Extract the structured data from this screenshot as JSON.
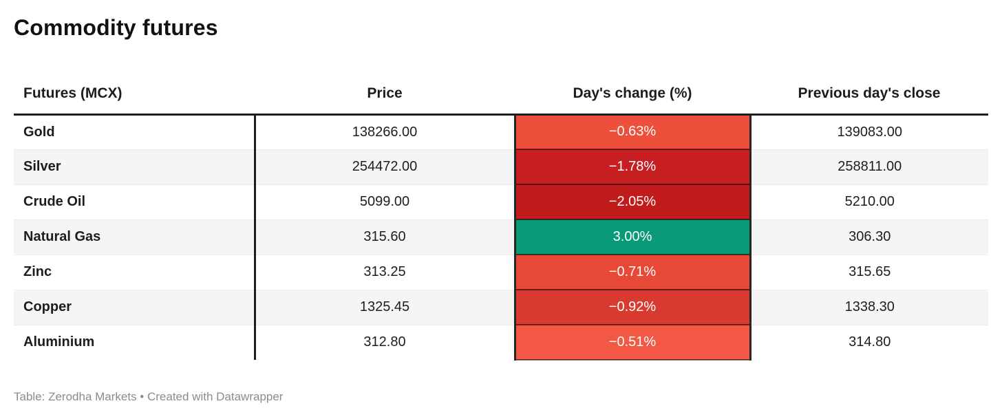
{
  "title": "Commodity futures",
  "footer": "Table: Zerodha Markets • Created with Datawrapper",
  "colors": {
    "negative_strong": "#c21b1c",
    "negative_mild": "#f25843",
    "positive": "#0a9a78",
    "header_rule": "#1d1d1d",
    "zebra_row": "#f5f5f5",
    "footer_text": "#8b8b8b"
  },
  "chart_data": {
    "type": "table",
    "title": "Commodity futures",
    "columns": [
      "Futures (MCX)",
      "Price",
      "Day's change (%)",
      "Previous day's close"
    ],
    "rows": [
      {
        "name": "Gold",
        "price": "138266.00",
        "change": "−0.63%",
        "change_value": -0.63,
        "change_color": "#ee4f3b",
        "prev_close": "139083.00"
      },
      {
        "name": "Silver",
        "price": "254472.00",
        "change": "−1.78%",
        "change_value": -1.78,
        "change_color": "#c71f21",
        "prev_close": "258811.00"
      },
      {
        "name": "Crude Oil",
        "price": "5099.00",
        "change": "−2.05%",
        "change_value": -2.05,
        "change_color": "#c21b1c",
        "prev_close": "5210.00"
      },
      {
        "name": "Natural Gas",
        "price": "315.60",
        "change": "3.00%",
        "change_value": 3.0,
        "change_color": "#0a9a78",
        "prev_close": "306.30"
      },
      {
        "name": "Zinc",
        "price": "313.25",
        "change": "−0.71%",
        "change_value": -0.71,
        "change_color": "#e84937",
        "prev_close": "315.65"
      },
      {
        "name": "Copper",
        "price": "1325.45",
        "change": "−0.92%",
        "change_value": -0.92,
        "change_color": "#d93a2f",
        "prev_close": "1338.30"
      },
      {
        "name": "Aluminium",
        "price": "312.80",
        "change": "−0.51%",
        "change_value": -0.51,
        "change_color": "#f25843",
        "prev_close": "314.80"
      }
    ]
  }
}
